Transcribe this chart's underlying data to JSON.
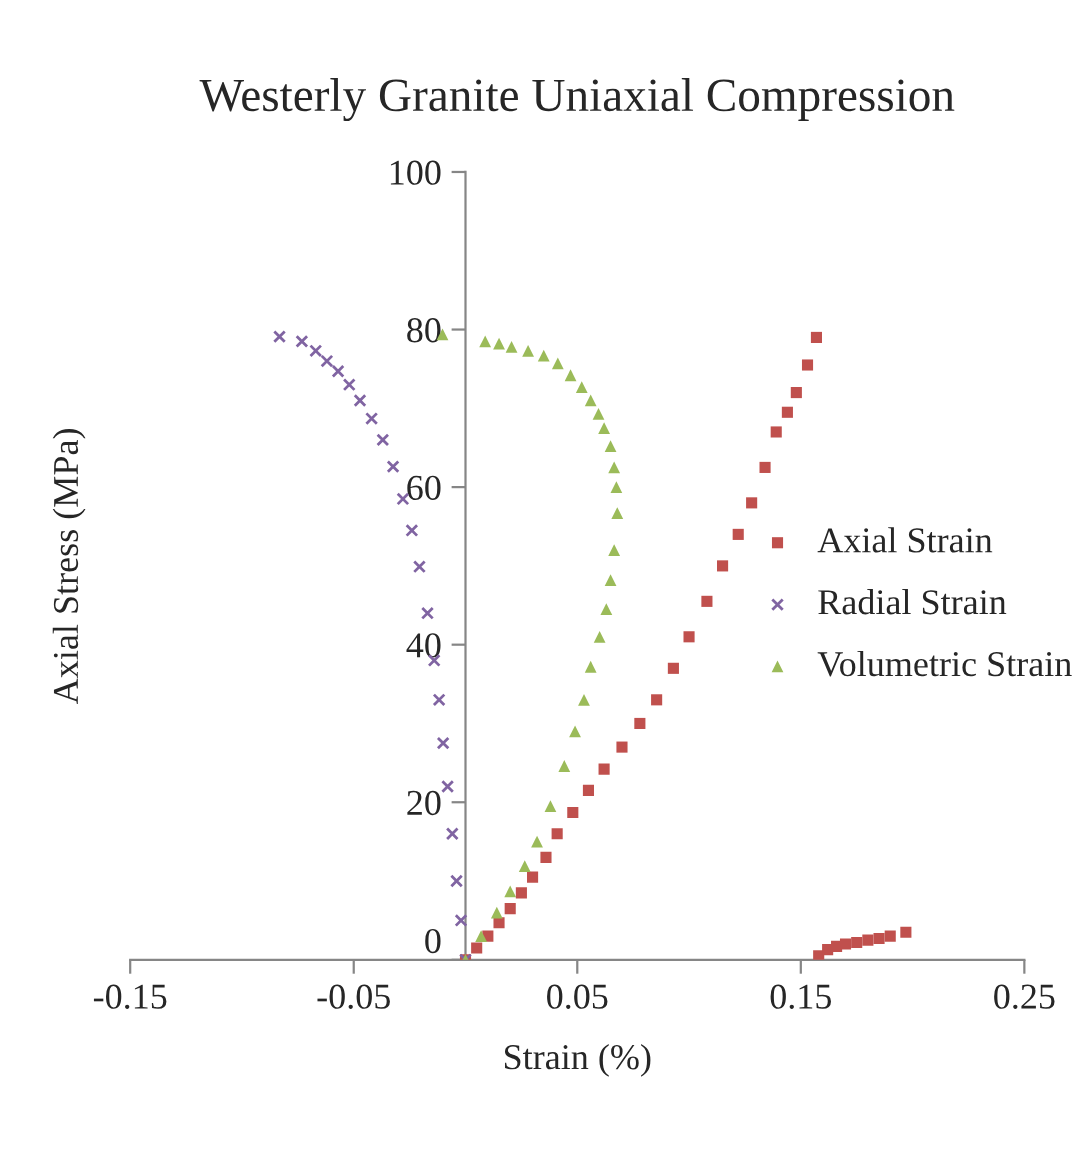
{
  "chart_data": {
    "type": "scatter",
    "title": "Westerly Granite Uniaxial Compression",
    "xlabel": "Strain (%)",
    "ylabel": "Axial Stress (MPa)",
    "xlim": [
      -0.15,
      0.25
    ],
    "xticks": [
      -0.15,
      -0.05,
      0.05,
      0.15,
      0.25
    ],
    "ylim": [
      0,
      100
    ],
    "yticks": [
      0,
      20,
      40,
      60,
      80,
      100
    ],
    "grid": false,
    "legend": "right",
    "series": [
      {
        "name": "Axial Strain",
        "color": "#c0504d",
        "marker": "square",
        "x": [
          0,
          0.005,
          0.01,
          0.015,
          0.02,
          0.025,
          0.03,
          0.036,
          0.041,
          0.048,
          0.055,
          0.062,
          0.07,
          0.078,
          0.0855,
          0.093,
          0.1,
          0.108,
          0.115,
          0.122,
          0.128,
          0.134,
          0.139,
          0.144,
          0.148,
          0.153,
          0.157,
          0.158,
          0.162,
          0.166,
          0.17,
          0.175,
          0.18,
          0.185,
          0.19,
          0.197
        ],
        "values": [
          0,
          1.5,
          3,
          4.7,
          6.5,
          8.5,
          10.5,
          13,
          16,
          18.7,
          21.5,
          24.2,
          27,
          30,
          33,
          37,
          41,
          45.5,
          50,
          54,
          58,
          62.5,
          67,
          69.5,
          72,
          75.5,
          79,
          0.5,
          1.3,
          1.7,
          2,
          2.2,
          2.5,
          2.7,
          3,
          3.5
        ]
      },
      {
        "name": "Radial Strain",
        "color": "#8064a2",
        "marker": "cross",
        "x": [
          0,
          -0.002,
          -0.004,
          -0.0059,
          -0.008,
          -0.01,
          -0.0118,
          -0.014,
          -0.017,
          -0.0206,
          -0.024,
          -0.028,
          -0.0324,
          -0.037,
          -0.042,
          -0.0472,
          -0.052,
          -0.057,
          -0.062,
          -0.067,
          -0.0732,
          -0.0832
        ],
        "values": [
          0,
          5,
          10,
          16,
          22,
          27.5,
          33,
          38,
          44,
          49.9,
          54.5,
          58.5,
          62.6,
          66,
          68.7,
          71,
          73,
          74.7,
          76,
          77.3,
          78.5,
          79.1
        ]
      },
      {
        "name": "Volumetric Strain",
        "color": "#9bbb59",
        "marker": "triangle",
        "x": [
          0,
          0.007,
          0.014,
          0.02,
          0.0265,
          0.032,
          0.038,
          0.0442,
          0.049,
          0.053,
          0.056,
          0.06,
          0.063,
          0.0649,
          0.0665,
          0.0679,
          0.0675,
          0.0665,
          0.0649,
          0.062,
          0.0595,
          0.056,
          0.052,
          0.047,
          0.0413,
          0.035,
          0.028,
          0.0206,
          0.015,
          0.0088,
          -0.0103
        ],
        "values": [
          0,
          3,
          6,
          8.7,
          11.9,
          15,
          19.5,
          24.6,
          29,
          33,
          37.2,
          41,
          44.5,
          48.2,
          52,
          56.7,
          60,
          62.5,
          65.2,
          67.5,
          69.3,
          71,
          72.7,
          74.2,
          75.7,
          76.7,
          77.3,
          77.8,
          78.2,
          78.5,
          79.4
        ]
      }
    ]
  }
}
